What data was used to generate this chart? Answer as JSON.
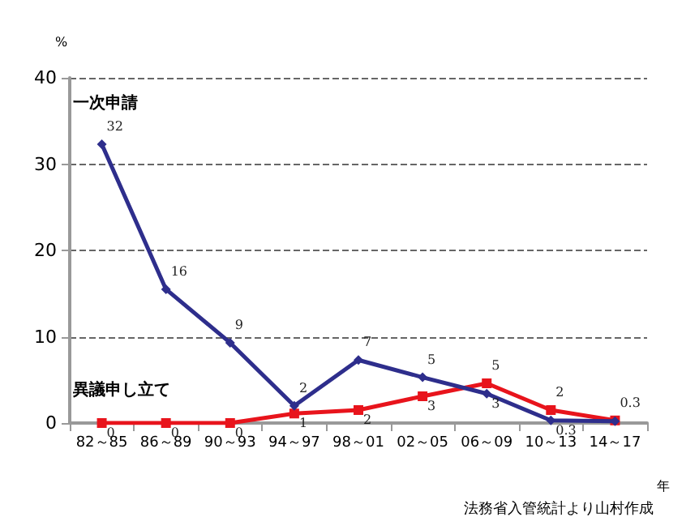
{
  "chart_data": {
    "type": "line",
    "ylabel": "%",
    "xlabel": "年",
    "categories": [
      "82～85",
      "86～89",
      "90～93",
      "94～97",
      "98～01",
      "02～05",
      "06～09",
      "10～13",
      "14～17"
    ],
    "series": [
      {
        "name": "一次申請",
        "color": "#2e2e8c",
        "marker": "diamond",
        "values": [
          32.3,
          15.5,
          9.3,
          2.0,
          7.3,
          5.3,
          3.4,
          0.3,
          0.2
        ],
        "value_labels": [
          "32",
          "16",
          "9",
          "2",
          "7",
          "5",
          "3",
          "0.3",
          null
        ]
      },
      {
        "name": "異議申し立て",
        "color": "#e8141c",
        "marker": "square",
        "values": [
          0,
          0,
          0,
          1.1,
          1.5,
          3.1,
          4.6,
          1.5,
          0.3
        ],
        "value_labels": [
          "0",
          "0",
          "0",
          "1",
          "2",
          "3",
          "5",
          "2",
          "0.3"
        ]
      }
    ],
    "ylim": [
      0,
      40
    ],
    "yticks": [
      0,
      10,
      20,
      30,
      40
    ],
    "grid": "y",
    "legend": false,
    "annotations": [
      "法務省入管統計より山村作成"
    ]
  }
}
